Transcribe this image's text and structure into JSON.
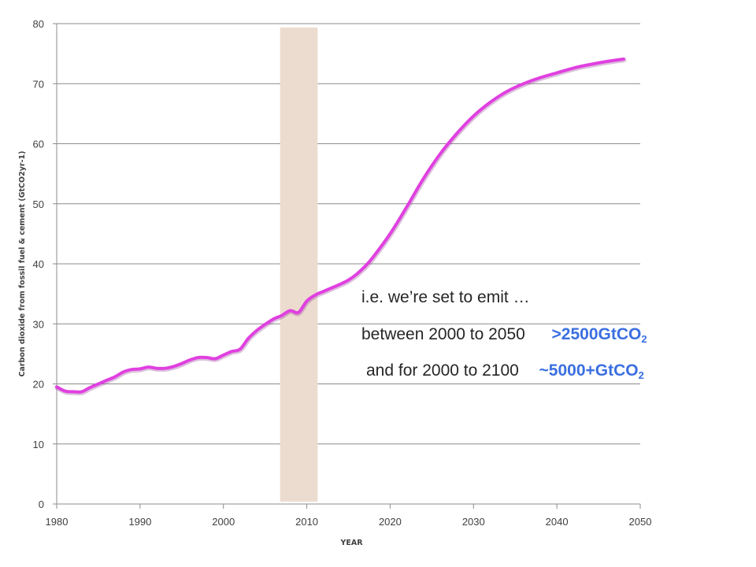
{
  "chart_data": {
    "type": "line",
    "ylabel": "Carbon dioxide from fossil fuel & cement (GtCO2yr-1)",
    "xlabel": "YEAR",
    "xlim": [
      1980,
      2050
    ],
    "ylim": [
      0,
      80
    ],
    "x_ticks": [
      "1980",
      "1990",
      "2000",
      "2010",
      "2020",
      "2030",
      "2040",
      "2050"
    ],
    "y_ticks": [
      "0",
      "10",
      "20",
      "30",
      "40",
      "50",
      "60",
      "70",
      "80"
    ],
    "grid": true,
    "series": [
      {
        "color": "#e040e0",
        "x": [
          1980,
          1981,
          1982,
          1983,
          1984,
          1985,
          1986,
          1987,
          1988,
          1989,
          1990,
          1991,
          1992,
          1993,
          1994,
          1995,
          1996,
          1997,
          1998,
          1999,
          2000,
          2001,
          2002,
          2003,
          2004,
          2005,
          2006,
          2007,
          2008,
          2009,
          2010,
          2011,
          2012,
          2013,
          2014,
          2015,
          2016,
          2017,
          2018,
          2020,
          2022,
          2024,
          2026,
          2028,
          2030,
          2032,
          2034,
          2036,
          2038,
          2040,
          2042,
          2044,
          2046,
          2048
        ],
        "y": [
          19.5,
          18.8,
          18.7,
          18.7,
          19.4,
          20.0,
          20.6,
          21.2,
          22.0,
          22.4,
          22.5,
          22.8,
          22.6,
          22.6,
          22.9,
          23.4,
          24.0,
          24.4,
          24.4,
          24.2,
          24.8,
          25.4,
          25.8,
          27.6,
          28.9,
          29.9,
          30.8,
          31.4,
          32.2,
          31.9,
          33.8,
          34.8,
          35.4,
          36.0,
          36.6,
          37.3,
          38.3,
          39.6,
          41.2,
          45.0,
          49.5,
          54.2,
          58.3,
          61.7,
          64.6,
          66.9,
          68.7,
          70.0,
          71.0,
          71.8,
          72.6,
          73.2,
          73.7,
          74.1
        ]
      }
    ],
    "highlight_band": {
      "x_from": 2006.8,
      "x_to": 2011.3,
      "color": "#ecdccf"
    }
  },
  "annotations": {
    "line1": "i.e. we’re set to emit …",
    "line2_text": "between 2000 to 2050",
    "line2_value": ">2500GtCO",
    "line2_sub": "2",
    "line3_text": "and for 2000 to 2100",
    "line3_value": "~5000+GtCO",
    "line3_sub": "2",
    "highlight_color": "#3b6fe0"
  }
}
